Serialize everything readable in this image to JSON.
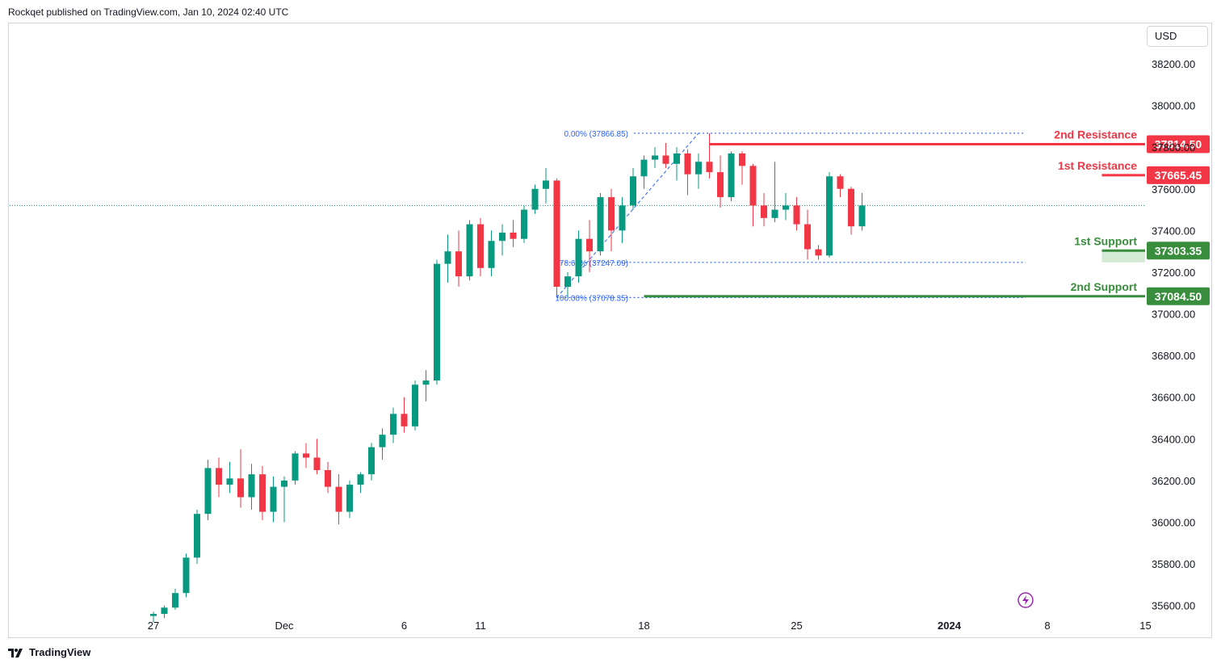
{
  "publisher": "Rockqet published on TradingView.com, Jan 10, 2024 02:40 UTC",
  "currency": "USD",
  "brand": "TradingView",
  "colors": {
    "up": "#089981",
    "down": "#f23645",
    "resistance": "#f23645",
    "support": "#388e3c",
    "fib": "#2962ff",
    "supportZone": "#c8e6c9"
  },
  "chart_data": {
    "type": "candlestick",
    "title": "",
    "ylim": [
      35560,
      38390
    ],
    "y_ticks": [
      "38200.00",
      "38000.00",
      "37800.00",
      "37600.00",
      "37400.00",
      "37200.00",
      "37000.00",
      "36800.00",
      "36600.00",
      "36400.00",
      "36200.00",
      "36000.00",
      "35800.00",
      "35600.00"
    ],
    "x_ticks": [
      {
        "label": "27",
        "index": 0
      },
      {
        "label": "Dec",
        "index": 12
      },
      {
        "label": "6",
        "index": 23
      },
      {
        "label": "11",
        "index": 30
      },
      {
        "label": "18",
        "index": 45
      },
      {
        "label": "25",
        "index": 59
      },
      {
        "label": "2024",
        "index": 73
      },
      {
        "label": "8",
        "index": 82
      },
      {
        "label": "15",
        "index": 91
      }
    ],
    "candles": [
      {
        "o": 35550,
        "h": 35570,
        "l": 35520,
        "c": 35560
      },
      {
        "o": 35560,
        "h": 35600,
        "l": 35540,
        "c": 35590
      },
      {
        "o": 35590,
        "h": 35680,
        "l": 35580,
        "c": 35660
      },
      {
        "o": 35660,
        "h": 35850,
        "l": 35640,
        "c": 35830
      },
      {
        "o": 35830,
        "h": 36060,
        "l": 35800,
        "c": 36040
      },
      {
        "o": 36040,
        "h": 36300,
        "l": 36010,
        "c": 36260
      },
      {
        "o": 36260,
        "h": 36310,
        "l": 36120,
        "c": 36180
      },
      {
        "o": 36180,
        "h": 36290,
        "l": 36140,
        "c": 36210
      },
      {
        "o": 36210,
        "h": 36350,
        "l": 36070,
        "c": 36120
      },
      {
        "o": 36120,
        "h": 36280,
        "l": 36060,
        "c": 36230
      },
      {
        "o": 36230,
        "h": 36270,
        "l": 36010,
        "c": 36050
      },
      {
        "o": 36050,
        "h": 36220,
        "l": 36000,
        "c": 36170
      },
      {
        "o": 36170,
        "h": 36220,
        "l": 36000,
        "c": 36200
      },
      {
        "o": 36200,
        "h": 36340,
        "l": 36180,
        "c": 36330
      },
      {
        "o": 36330,
        "h": 36380,
        "l": 36260,
        "c": 36310
      },
      {
        "o": 36310,
        "h": 36400,
        "l": 36230,
        "c": 36250
      },
      {
        "o": 36250,
        "h": 36290,
        "l": 36140,
        "c": 36170
      },
      {
        "o": 36170,
        "h": 36230,
        "l": 35990,
        "c": 36050
      },
      {
        "o": 36050,
        "h": 36200,
        "l": 36020,
        "c": 36180
      },
      {
        "o": 36180,
        "h": 36240,
        "l": 36140,
        "c": 36230
      },
      {
        "o": 36230,
        "h": 36380,
        "l": 36200,
        "c": 36360
      },
      {
        "o": 36360,
        "h": 36450,
        "l": 36300,
        "c": 36420
      },
      {
        "o": 36420,
        "h": 36550,
        "l": 36380,
        "c": 36520
      },
      {
        "o": 36520,
        "h": 36600,
        "l": 36430,
        "c": 36460
      },
      {
        "o": 36460,
        "h": 36680,
        "l": 36440,
        "c": 36660
      },
      {
        "o": 36660,
        "h": 36730,
        "l": 36580,
        "c": 36680
      },
      {
        "o": 36680,
        "h": 37260,
        "l": 36660,
        "c": 37240
      },
      {
        "o": 37240,
        "h": 37380,
        "l": 37150,
        "c": 37300
      },
      {
        "o": 37300,
        "h": 37400,
        "l": 37130,
        "c": 37180
      },
      {
        "o": 37180,
        "h": 37450,
        "l": 37160,
        "c": 37430
      },
      {
        "o": 37430,
        "h": 37460,
        "l": 37180,
        "c": 37220
      },
      {
        "o": 37220,
        "h": 37400,
        "l": 37180,
        "c": 37350
      },
      {
        "o": 37350,
        "h": 37430,
        "l": 37280,
        "c": 37390
      },
      {
        "o": 37390,
        "h": 37450,
        "l": 37320,
        "c": 37360
      },
      {
        "o": 37360,
        "h": 37520,
        "l": 37340,
        "c": 37500
      },
      {
        "o": 37500,
        "h": 37620,
        "l": 37480,
        "c": 37600
      },
      {
        "o": 37600,
        "h": 37700,
        "l": 37530,
        "c": 37640
      },
      {
        "o": 37640,
        "h": 37650,
        "l": 37080,
        "c": 37130
      },
      {
        "o": 37130,
        "h": 37200,
        "l": 37080,
        "c": 37180
      },
      {
        "o": 37180,
        "h": 37400,
        "l": 37150,
        "c": 37360
      },
      {
        "o": 37360,
        "h": 37450,
        "l": 37200,
        "c": 37300
      },
      {
        "o": 37300,
        "h": 37580,
        "l": 37280,
        "c": 37560
      },
      {
        "o": 37560,
        "h": 37600,
        "l": 37300,
        "c": 37400
      },
      {
        "o": 37400,
        "h": 37560,
        "l": 37340,
        "c": 37520
      },
      {
        "o": 37520,
        "h": 37700,
        "l": 37500,
        "c": 37660
      },
      {
        "o": 37660,
        "h": 37760,
        "l": 37600,
        "c": 37740
      },
      {
        "o": 37740,
        "h": 37800,
        "l": 37700,
        "c": 37760
      },
      {
        "o": 37760,
        "h": 37820,
        "l": 37700,
        "c": 37720
      },
      {
        "o": 37720,
        "h": 37800,
        "l": 37640,
        "c": 37770
      },
      {
        "o": 37770,
        "h": 37790,
        "l": 37570,
        "c": 37670
      },
      {
        "o": 37670,
        "h": 37770,
        "l": 37600,
        "c": 37730
      },
      {
        "o": 37730,
        "h": 37867,
        "l": 37650,
        "c": 37680
      },
      {
        "o": 37680,
        "h": 37760,
        "l": 37510,
        "c": 37560
      },
      {
        "o": 37560,
        "h": 37780,
        "l": 37540,
        "c": 37770
      },
      {
        "o": 37770,
        "h": 37780,
        "l": 37620,
        "c": 37710
      },
      {
        "o": 37710,
        "h": 37720,
        "l": 37420,
        "c": 37520
      },
      {
        "o": 37520,
        "h": 37580,
        "l": 37420,
        "c": 37460
      },
      {
        "o": 37460,
        "h": 37730,
        "l": 37440,
        "c": 37500
      },
      {
        "o": 37500,
        "h": 37580,
        "l": 37450,
        "c": 37520
      },
      {
        "o": 37520,
        "h": 37560,
        "l": 37400,
        "c": 37430
      },
      {
        "o": 37430,
        "h": 37500,
        "l": 37260,
        "c": 37310
      },
      {
        "o": 37310,
        "h": 37330,
        "l": 37260,
        "c": 37280
      },
      {
        "o": 37280,
        "h": 37680,
        "l": 37270,
        "c": 37660
      },
      {
        "o": 37660,
        "h": 37670,
        "l": 37560,
        "c": 37600
      },
      {
        "o": 37600,
        "h": 37610,
        "l": 37380,
        "c": 37420
      },
      {
        "o": 37420,
        "h": 37580,
        "l": 37400,
        "c": 37520
      }
    ],
    "levels": [
      {
        "name": "2nd Resistance",
        "value": 37814.5,
        "value_label": "37814.50",
        "kind": "resistance",
        "from_index": 51
      },
      {
        "name": "1st Resistance",
        "value": 37665.45,
        "value_label": "37665.45",
        "kind": "resistance",
        "from_index": 87
      },
      {
        "name": "1st Support",
        "value": 37303.35,
        "value_label": "37303.35",
        "kind": "support",
        "from_index": 87
      },
      {
        "name": "2nd Support",
        "value": 37084.5,
        "value_label": "37084.50",
        "kind": "support",
        "from_index": 45
      }
    ],
    "fibonacci": [
      {
        "label": "0.00% (37866.85)",
        "value": 37866.85
      },
      {
        "label": "78.60% (37247.09)",
        "value": 37247.09
      },
      {
        "label": "100.00% (37078.35)",
        "value": 37078.35
      }
    ],
    "current_price": 37520
  }
}
